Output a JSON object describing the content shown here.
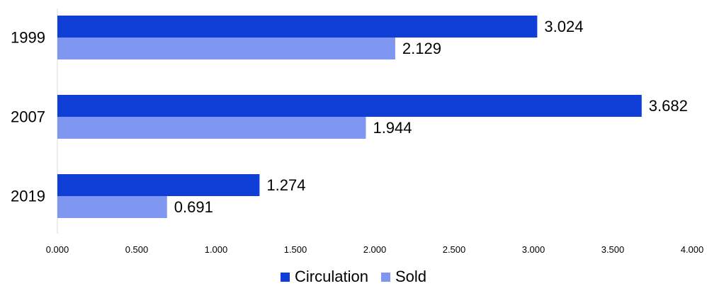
{
  "chart_data": {
    "type": "bar",
    "orientation": "horizontal",
    "categories": [
      "1999",
      "2007",
      "2019"
    ],
    "series": [
      {
        "name": "Circulation",
        "color": "#0f3fd7",
        "values": [
          3.024,
          3.682,
          1.274
        ],
        "labels": [
          "3.024",
          "3.682",
          "1.274"
        ]
      },
      {
        "name": "Sold",
        "color": "#8097f2",
        "values": [
          2.129,
          1.944,
          0.691
        ],
        "labels": [
          "2.129",
          "1.944",
          "0.691"
        ]
      }
    ],
    "xlim": [
      0,
      4
    ],
    "xticks": [
      0,
      0.5,
      1,
      1.5,
      2,
      2.5,
      3,
      3.5,
      4
    ],
    "xtick_labels": [
      "0.000",
      "0.500",
      "1.000",
      "1.500",
      "2.000",
      "2.500",
      "3.000",
      "3.500",
      "4.000"
    ],
    "title": "",
    "xlabel": "",
    "ylabel": "",
    "grid": false,
    "legend_position": "bottom"
  }
}
